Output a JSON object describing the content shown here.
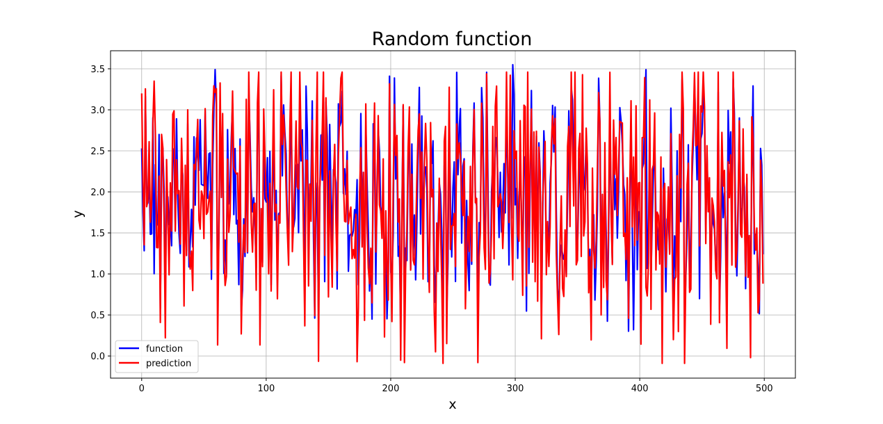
{
  "chart_data": {
    "type": "line",
    "title": "Random function",
    "xlabel": "x",
    "ylabel": "y",
    "xlim": [
      -25,
      525
    ],
    "ylim": [
      -0.27,
      3.72
    ],
    "xticks": [
      0,
      100,
      200,
      300,
      400,
      500
    ],
    "yticks": [
      0.0,
      0.5,
      1.0,
      1.5,
      2.0,
      2.5,
      3.0,
      3.5
    ],
    "grid": true,
    "legend_position": "lower-left",
    "n_points": 500,
    "value_range": [
      0.0,
      3.5
    ],
    "series": [
      {
        "name": "function",
        "color": "#0000ff"
      },
      {
        "name": "prediction",
        "color": "#ff0000"
      }
    ],
    "sampled_points": {
      "function": [
        [
          0,
          2.53
        ],
        [
          47,
          2.88
        ],
        [
          132,
          3.29
        ],
        [
          298,
          3.55
        ],
        [
          405,
          3.49
        ],
        [
          395,
          0.32
        ],
        [
          436,
          0.42
        ],
        [
          489,
          0.9
        ]
      ],
      "prediction": [
        [
          0,
          3.2
        ],
        [
          10,
          3.35
        ],
        [
          141,
          3.46
        ],
        [
          173,
          3.46
        ],
        [
          173,
          -0.07
        ],
        [
          211,
          -0.08
        ],
        [
          436,
          -0.09
        ],
        [
          489,
          -0.02
        ]
      ]
    }
  }
}
